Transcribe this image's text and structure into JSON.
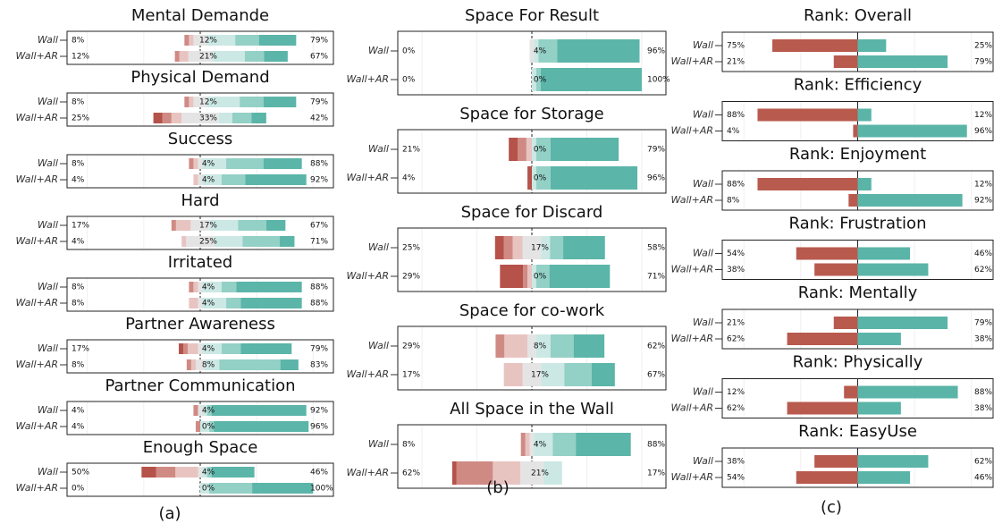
{
  "panels": [
    {
      "caption": "(a)",
      "type": "diverging-bar",
      "xlim": [
        -118,
        118
      ],
      "xticks": [
        -100,
        -50,
        0,
        50,
        100
      ],
      "colors": [
        "#b5524a",
        "#d08a84",
        "#e8c4c1",
        "#e4e4e4",
        "#cbe8e4",
        "#93d0c6",
        "#5bb5a8"
      ],
      "charts": [
        {
          "title": "Mental Demande",
          "rows": [
            {
              "name": "Wall",
              "values": [
                0,
                4,
                4,
                12,
                25,
                21,
                33
              ],
              "labels": [
                "8%",
                "12%",
                "79%"
              ]
            },
            {
              "name": "Wall+AR",
              "values": [
                0,
                4,
                8,
                21,
                29,
                17,
                21
              ],
              "labels": [
                "12%",
                "21%",
                "67%"
              ]
            }
          ]
        },
        {
          "title": "Physical Demand",
          "rows": [
            {
              "name": "Wall",
              "values": [
                0,
                4,
                4,
                12,
                29,
                21,
                29
              ],
              "labels": [
                "8%",
                "12%",
                "79%"
              ]
            },
            {
              "name": "Wall+AR",
              "values": [
                8,
                8,
                9,
                33,
                12,
                17,
                13
              ],
              "labels": [
                "25%",
                "33%",
                "42%"
              ]
            }
          ]
        },
        {
          "title": "Success",
          "rows": [
            {
              "name": "Wall",
              "values": [
                0,
                4,
                4,
                4,
                21,
                33,
                34
              ],
              "labels": [
                "8%",
                "4%",
                "88%"
              ]
            },
            {
              "name": "Wall+AR",
              "values": [
                0,
                0,
                4,
                4,
                17,
                21,
                54
              ],
              "labels": [
                "4%",
                "4%",
                "92%"
              ]
            }
          ]
        },
        {
          "title": "Hard",
          "rows": [
            {
              "name": "Wall",
              "values": [
                0,
                4,
                13,
                17,
                25,
                25,
                17
              ],
              "labels": [
                "17%",
                "17%",
                "67%"
              ]
            },
            {
              "name": "Wall+AR",
              "values": [
                0,
                0,
                4,
                25,
                25,
                33,
                13
              ],
              "labels": [
                "4%",
                "25%",
                "71%"
              ]
            }
          ]
        },
        {
          "title": "Irritated",
          "rows": [
            {
              "name": "Wall",
              "values": [
                0,
                4,
                4,
                4,
                17,
                13,
                58
              ],
              "labels": [
                "8%",
                "4%",
                "88%"
              ]
            },
            {
              "name": "Wall+AR",
              "values": [
                0,
                0,
                8,
                4,
                21,
                13,
                54
              ],
              "labels": [
                "8%",
                "4%",
                "88%"
              ]
            }
          ]
        },
        {
          "title": "Partner Awareness",
          "rows": [
            {
              "name": "Wall",
              "values": [
                4,
                4,
                9,
                4,
                17,
                17,
                45
              ],
              "labels": [
                "17%",
                "4%",
                "79%"
              ]
            },
            {
              "name": "Wall+AR",
              "values": [
                0,
                4,
                4,
                8,
                13,
                54,
                16
              ],
              "labels": [
                "8%",
                "8%",
                "83%"
              ]
            }
          ]
        },
        {
          "title": "Partner Communication",
          "rows": [
            {
              "name": "Wall",
              "values": [
                0,
                4,
                0,
                4,
                4,
                4,
                84
              ],
              "labels": [
                "4%",
                "4%",
                "92%"
              ]
            },
            {
              "name": "Wall+AR",
              "values": [
                0,
                4,
                0,
                0,
                8,
                4,
                84
              ],
              "labels": [
                "4%",
                "0%",
                "96%"
              ]
            }
          ]
        },
        {
          "title": "Enough Space",
          "rows": [
            {
              "name": "Wall",
              "values": [
                13,
                17,
                20,
                4,
                4,
                4,
                38
              ],
              "labels": [
                "50%",
                "4%",
                "46%"
              ]
            },
            {
              "name": "Wall+AR",
              "values": [
                0,
                0,
                0,
                0,
                8,
                38,
                54
              ],
              "labels": [
                "0%",
                "0%",
                "100%"
              ]
            }
          ]
        }
      ]
    },
    {
      "caption": "(b)",
      "type": "diverging-bar",
      "xlim": [
        -122,
        122
      ],
      "xticks": [
        -100,
        -50,
        0,
        50,
        100
      ],
      "colors": [
        "#b5524a",
        "#d08a84",
        "#e8c4c1",
        "#e4e4e4",
        "#cbe8e4",
        "#93d0c6",
        "#5bb5a8"
      ],
      "charts": [
        {
          "title": "Space For Result",
          "rows": [
            {
              "name": "Wall",
              "values": [
                0,
                0,
                0,
                4,
                4,
                17,
                75
              ],
              "labels": [
                "0%",
                "4%",
                "96%"
              ]
            },
            {
              "name": "Wall+AR",
              "values": [
                0,
                0,
                0,
                0,
                4,
                4,
                92
              ],
              "labels": [
                "0%",
                "0%",
                "100%"
              ]
            }
          ]
        },
        {
          "title": "Space for Storage",
          "rows": [
            {
              "name": "Wall",
              "values": [
                8,
                8,
                5,
                0,
                4,
                13,
                62
              ],
              "labels": [
                "21%",
                "0%",
                "79%"
              ]
            },
            {
              "name": "Wall+AR",
              "values": [
                4,
                0,
                0,
                0,
                4,
                13,
                79
              ],
              "labels": [
                "4%",
                "0%",
                "96%"
              ]
            }
          ]
        },
        {
          "title": "Space for Discard",
          "rows": [
            {
              "name": "Wall",
              "values": [
                8,
                8,
                9,
                17,
                8,
                12,
                38
              ],
              "labels": [
                "25%",
                "17%",
                "58%"
              ]
            },
            {
              "name": "Wall+AR",
              "values": [
                21,
                4,
                4,
                0,
                4,
                12,
                55
              ],
              "labels": [
                "29%",
                "0%",
                "71%"
              ]
            }
          ]
        },
        {
          "title": "Space for co-work",
          "rows": [
            {
              "name": "Wall",
              "values": [
                0,
                8,
                21,
                8,
                13,
                21,
                28
              ],
              "labels": [
                "29%",
                "8%",
                "62%"
              ]
            },
            {
              "name": "Wall+AR",
              "values": [
                0,
                0,
                17,
                17,
                21,
                25,
                21
              ],
              "labels": [
                "17%",
                "17%",
                "67%"
              ]
            }
          ]
        },
        {
          "title": "All Space in the Wall",
          "rows": [
            {
              "name": "Wall",
              "values": [
                0,
                4,
                4,
                4,
                17,
                21,
                50
              ],
              "labels": [
                "8%",
                "4%",
                "88%"
              ]
            },
            {
              "name": "Wall+AR",
              "values": [
                4,
                33,
                25,
                21,
                17,
                0,
                0
              ],
              "labels": [
                "62%",
                "21%",
                "17%"
              ]
            }
          ]
        }
      ]
    },
    {
      "caption": "(c)",
      "type": "diverging-bar",
      "xlim": [
        -119,
        119
      ],
      "xticks": [
        -100,
        -50,
        0,
        50,
        100
      ],
      "colors": [
        "#b85a4e",
        "#5ab4a8"
      ],
      "charts": [
        {
          "title": "Rank: Overall",
          "rows": [
            {
              "name": "Wall",
              "values": [
                75,
                25
              ],
              "labels": [
                "75%",
                "25%"
              ]
            },
            {
              "name": "Wall+AR",
              "values": [
                21,
                79
              ],
              "labels": [
                "21%",
                "79%"
              ]
            }
          ]
        },
        {
          "title": "Rank: Efficiency",
          "rows": [
            {
              "name": "Wall",
              "values": [
                88,
                12
              ],
              "labels": [
                "88%",
                "12%"
              ]
            },
            {
              "name": "Wall+AR",
              "values": [
                4,
                96
              ],
              "labels": [
                "4%",
                "96%"
              ]
            }
          ]
        },
        {
          "title": "Rank: Enjoyment",
          "rows": [
            {
              "name": "Wall",
              "values": [
                88,
                12
              ],
              "labels": [
                "88%",
                "12%"
              ]
            },
            {
              "name": "Wall+AR",
              "values": [
                8,
                92
              ],
              "labels": [
                "8%",
                "92%"
              ]
            }
          ]
        },
        {
          "title": "Rank: Frustration",
          "rows": [
            {
              "name": "Wall",
              "values": [
                54,
                46
              ],
              "labels": [
                "54%",
                "46%"
              ]
            },
            {
              "name": "Wall+AR",
              "values": [
                38,
                62
              ],
              "labels": [
                "38%",
                "62%"
              ]
            }
          ]
        },
        {
          "title": "Rank: Mentally",
          "rows": [
            {
              "name": "Wall",
              "values": [
                21,
                79
              ],
              "labels": [
                "21%",
                "79%"
              ]
            },
            {
              "name": "Wall+AR",
              "values": [
                62,
                38
              ],
              "labels": [
                "62%",
                "38%"
              ]
            }
          ]
        },
        {
          "title": "Rank: Physically",
          "rows": [
            {
              "name": "Wall",
              "values": [
                12,
                88
              ],
              "labels": [
                "12%",
                "88%"
              ]
            },
            {
              "name": "Wall+AR",
              "values": [
                62,
                38
              ],
              "labels": [
                "62%",
                "38%"
              ]
            }
          ]
        },
        {
          "title": "Rank: EasyUse",
          "rows": [
            {
              "name": "Wall",
              "values": [
                38,
                62
              ],
              "labels": [
                "38%",
                "62%"
              ]
            },
            {
              "name": "Wall+AR",
              "values": [
                54,
                46
              ],
              "labels": [
                "54%",
                "46%"
              ]
            }
          ]
        }
      ]
    }
  ]
}
